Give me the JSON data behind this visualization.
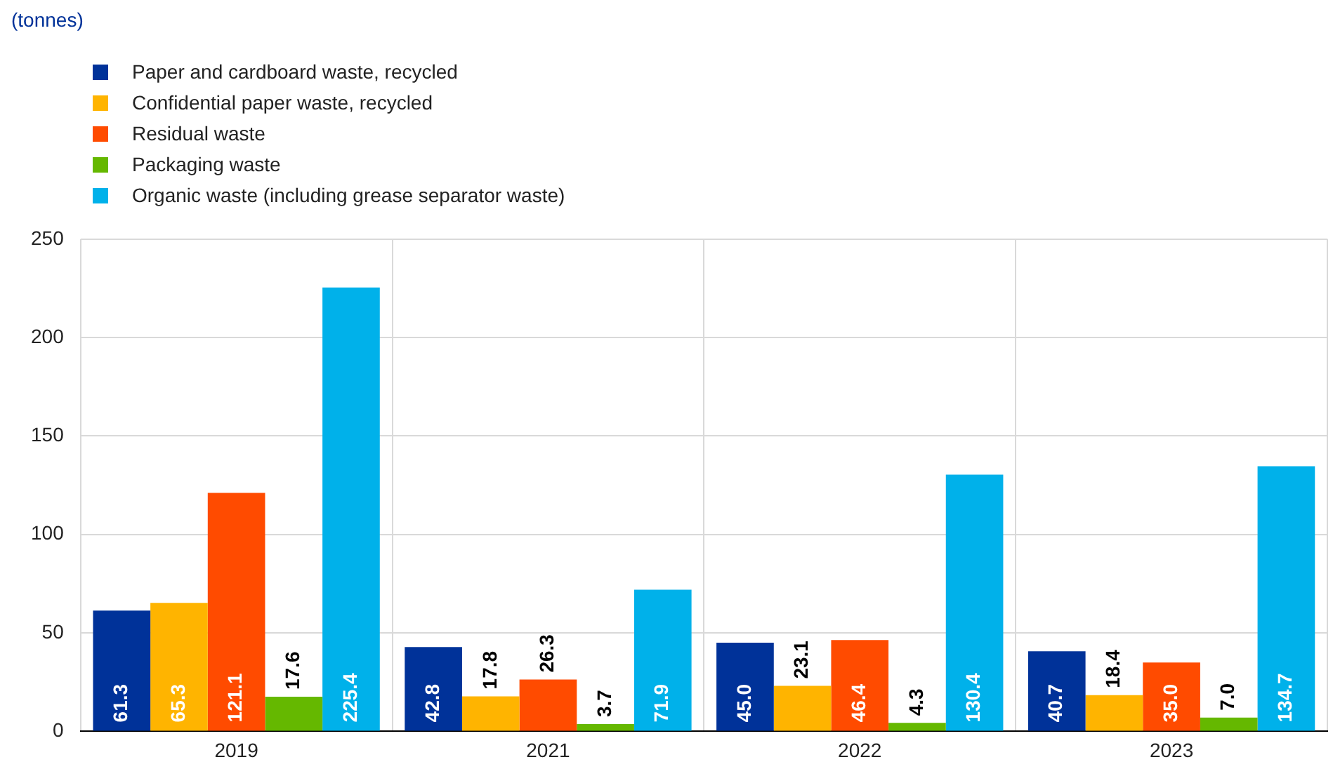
{
  "chart_data": {
    "type": "bar",
    "annotations": [
      "(tonnes)"
    ],
    "categories": [
      "2019",
      "2021",
      "2022",
      "2023"
    ],
    "series": [
      {
        "name": "Paper and cardboard waste, recycled",
        "color": "#003299",
        "values": [
          61.3,
          42.8,
          45.0,
          40.7
        ],
        "value_labels": [
          "61.3",
          "42.8",
          "45.0",
          "40.7"
        ]
      },
      {
        "name": "Confidential paper waste, recycled",
        "color": "#ffb400",
        "values": [
          65.3,
          17.8,
          23.1,
          18.4
        ],
        "value_labels": [
          "65.3",
          "17.8",
          "23.1",
          "18.4"
        ]
      },
      {
        "name": "Residual waste",
        "color": "#ff4b00",
        "values": [
          121.1,
          26.3,
          46.4,
          35.0
        ],
        "value_labels": [
          "121.1",
          "26.3",
          "46.4",
          "35.0"
        ]
      },
      {
        "name": "Packaging waste",
        "color": "#65b800",
        "values": [
          17.6,
          3.7,
          4.3,
          7.0
        ],
        "value_labels": [
          "17.6",
          "3.7",
          "4.3",
          "7.0"
        ]
      },
      {
        "name": "Organic waste (including grease separator waste)",
        "color": "#00b1ea",
        "values": [
          225.4,
          71.9,
          130.4,
          134.7
        ],
        "value_labels": [
          "225.4",
          "71.9",
          "130.4",
          "134.7"
        ]
      }
    ],
    "ylim": [
      0,
      250
    ],
    "yticks": [
      0,
      50,
      100,
      150,
      200,
      250
    ],
    "grid": true,
    "legend": "top left"
  }
}
